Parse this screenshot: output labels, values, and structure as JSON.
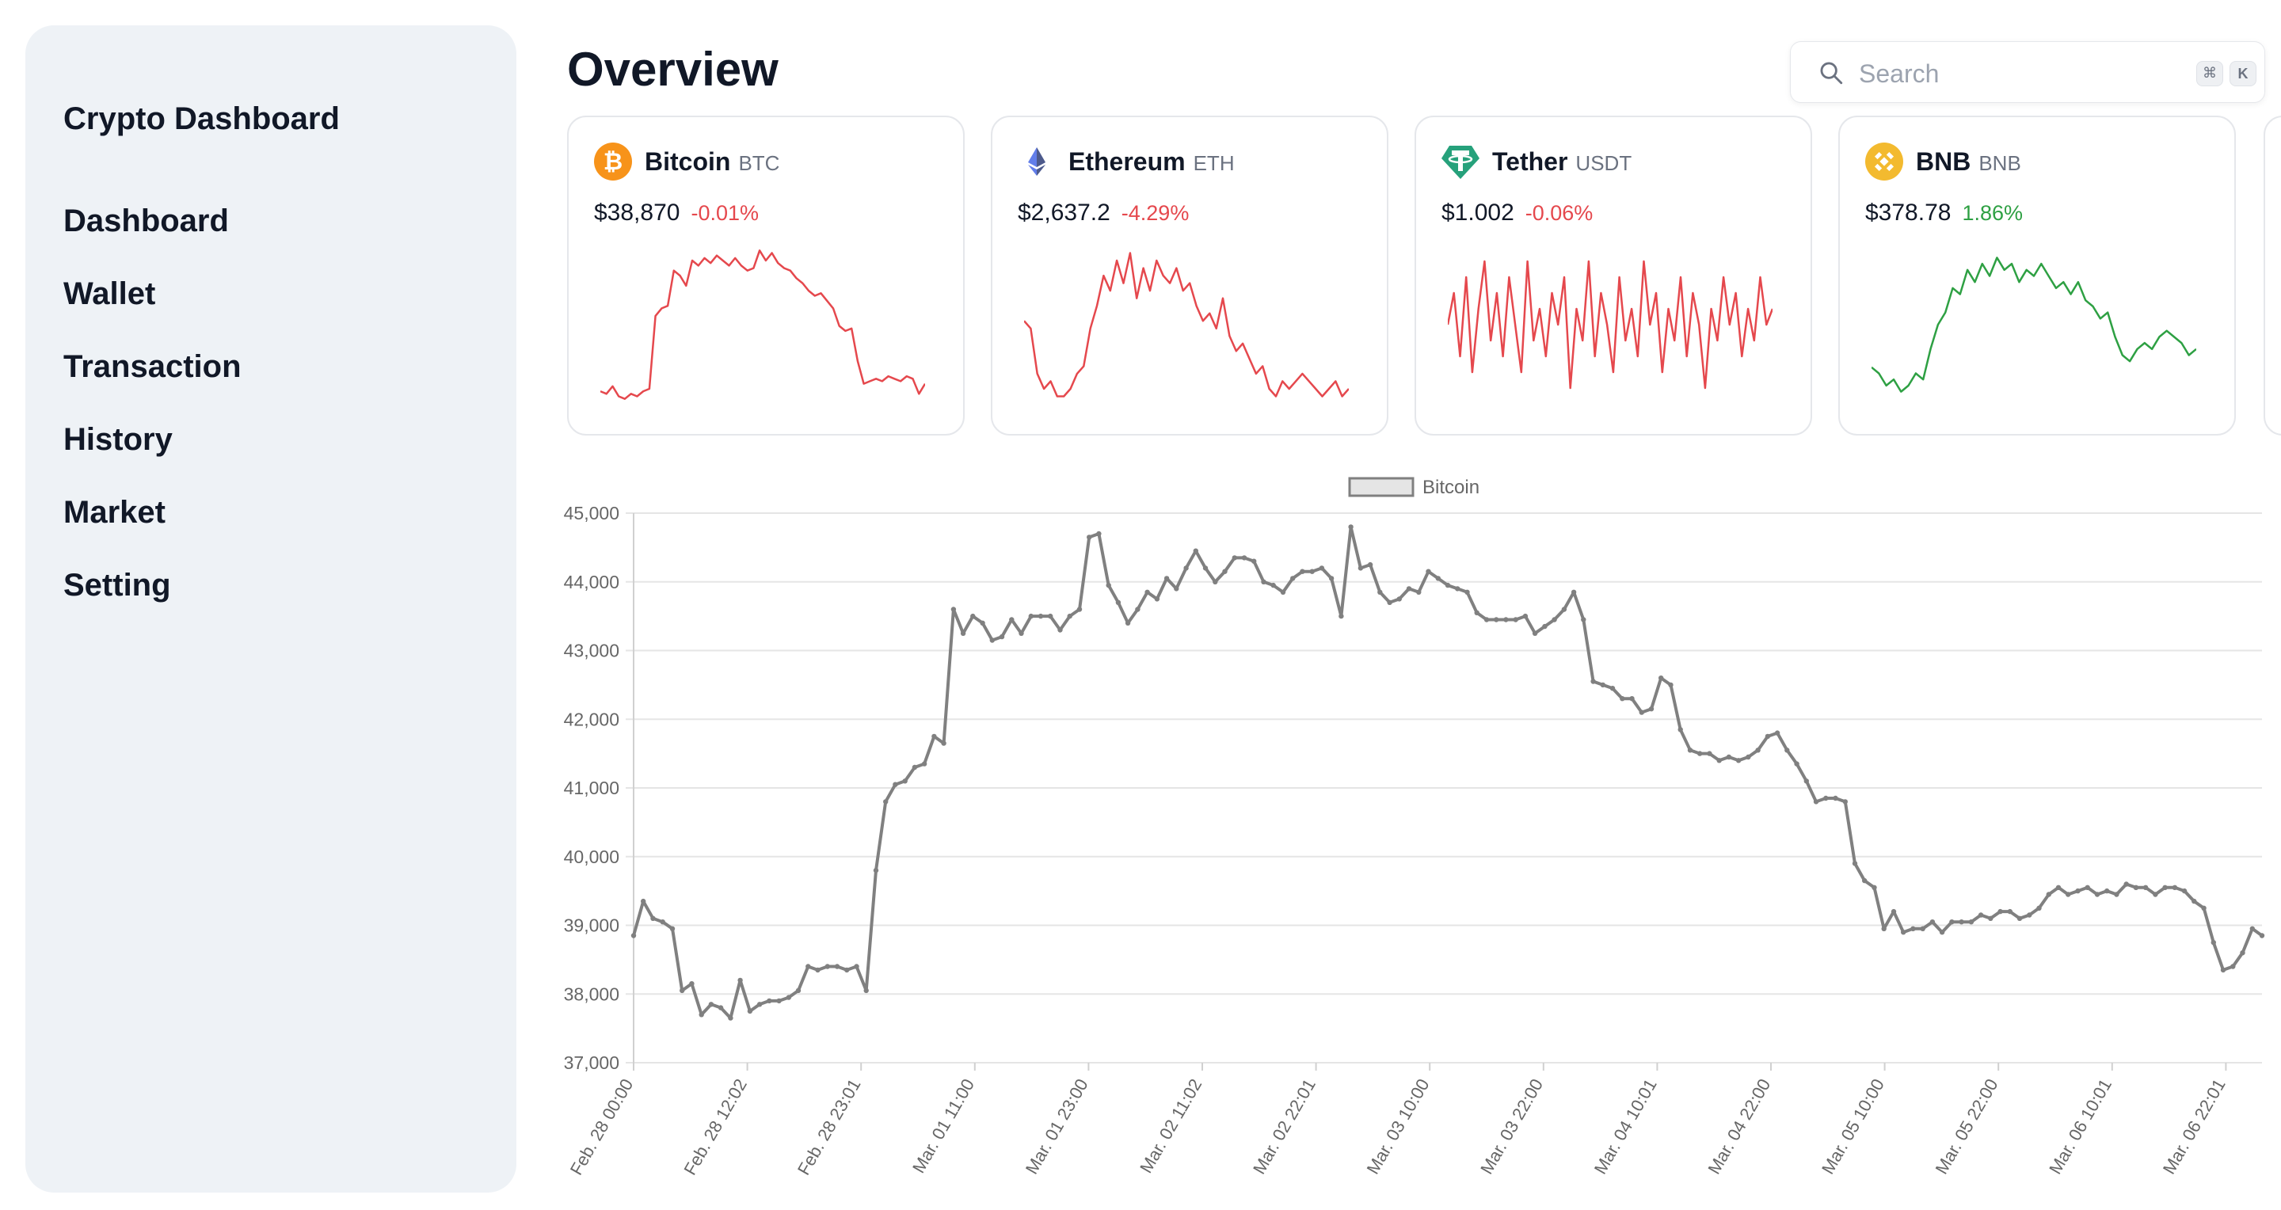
{
  "sidebar": {
    "brand": "Crypto Dashboard",
    "items": [
      "Dashboard",
      "Wallet",
      "Transaction",
      "History",
      "Market",
      "Setting"
    ]
  },
  "header": {
    "title": "Overview",
    "search": {
      "placeholder": "Search",
      "shortcut": [
        "⌘",
        "K"
      ],
      "icon": "search-icon"
    }
  },
  "colors": {
    "negative": "#e5484d",
    "positive": "#2ea043",
    "sidebar_bg": "#eef2f6",
    "main_line": "#808080"
  },
  "coins": [
    {
      "name": "Bitcoin",
      "symbol": "BTC",
      "price": "$38,870",
      "change": "-0.01%",
      "trend": "down",
      "icon": "bitcoin-icon",
      "icon_color": "#f7931a",
      "spark": [
        39,
        38.9,
        39.2,
        38.8,
        38.7,
        38.9,
        38.8,
        39.0,
        39.1,
        42.0,
        42.3,
        42.4,
        43.8,
        43.6,
        43.2,
        44.2,
        44.0,
        44.3,
        44.1,
        44.4,
        44.2,
        44.0,
        44.3,
        44.0,
        43.8,
        43.9,
        44.6,
        44.2,
        44.5,
        44.1,
        43.9,
        43.8,
        43.5,
        43.3,
        43.0,
        42.8,
        42.9,
        42.6,
        42.3,
        41.6,
        41.4,
        41.5,
        40.2,
        39.3,
        39.4,
        39.5,
        39.4,
        39.6,
        39.5,
        39.4,
        39.6,
        39.5,
        38.9,
        39.3
      ]
    },
    {
      "name": "Ethereum",
      "symbol": "ETH",
      "price": "$2,637.2",
      "change": "-4.29%",
      "trend": "down",
      "icon": "ethereum-icon",
      "icon_color": "#627eea",
      "spark": [
        3.0,
        2.9,
        2.3,
        2.1,
        2.2,
        2.0,
        2.0,
        2.1,
        2.3,
        2.4,
        2.9,
        3.2,
        3.6,
        3.4,
        3.8,
        3.5,
        3.9,
        3.3,
        3.7,
        3.4,
        3.8,
        3.6,
        3.5,
        3.7,
        3.4,
        3.5,
        3.2,
        3.0,
        3.1,
        2.9,
        3.3,
        2.8,
        2.6,
        2.7,
        2.5,
        2.3,
        2.4,
        2.1,
        2.0,
        2.2,
        2.1,
        2.2,
        2.3,
        2.2,
        2.1,
        2.0,
        2.1,
        2.2,
        2.0,
        2.1
      ],
      "spark_min": 1.9,
      "spark_max": 4.0
    },
    {
      "name": "Tether",
      "symbol": "USDT",
      "price": "$1.002",
      "change": "-0.06%",
      "trend": "down",
      "icon": "tether-icon",
      "icon_color": "#26a17b",
      "spark": [
        0.5,
        0.7,
        0.3,
        0.8,
        0.2,
        0.6,
        0.9,
        0.4,
        0.7,
        0.3,
        0.8,
        0.5,
        0.2,
        0.9,
        0.4,
        0.6,
        0.3,
        0.7,
        0.5,
        0.8,
        0.1,
        0.6,
        0.4,
        0.9,
        0.3,
        0.7,
        0.5,
        0.2,
        0.8,
        0.4,
        0.6,
        0.3,
        0.9,
        0.5,
        0.7,
        0.2,
        0.6,
        0.4,
        0.8,
        0.3,
        0.7,
        0.5,
        0.1,
        0.6,
        0.4,
        0.8,
        0.5,
        0.7,
        0.3,
        0.6,
        0.4,
        0.8,
        0.5,
        0.6
      ],
      "spark_min": 0.0,
      "spark_max": 1.0
    },
    {
      "name": "BNB",
      "symbol": "BNB",
      "price": "$378.78",
      "change": "1.86%",
      "trend": "up",
      "icon": "bnb-icon",
      "icon_color": "#f3ba2f",
      "spark": [
        2.1,
        2.0,
        1.8,
        1.9,
        1.7,
        1.8,
        2.0,
        1.9,
        2.4,
        2.8,
        3.0,
        3.4,
        3.3,
        3.7,
        3.5,
        3.8,
        3.6,
        3.9,
        3.7,
        3.8,
        3.5,
        3.7,
        3.6,
        3.8,
        3.6,
        3.4,
        3.5,
        3.3,
        3.5,
        3.2,
        3.1,
        2.9,
        3.0,
        2.6,
        2.3,
        2.2,
        2.4,
        2.5,
        2.4,
        2.6,
        2.7,
        2.6,
        2.5,
        2.3,
        2.4
      ],
      "spark_min": 1.5,
      "spark_max": 4.1
    }
  ],
  "chart_data": {
    "type": "line",
    "legend": "Bitcoin",
    "legend_position": "top-center",
    "grid": true,
    "ylim": [
      37000,
      45000
    ],
    "yticks": [
      "37,000",
      "38,000",
      "39,000",
      "40,000",
      "41,000",
      "42,000",
      "43,000",
      "44,000",
      "45,000"
    ],
    "xticks": [
      "Feb. 28 00:00",
      "Feb. 28 12:02",
      "Feb. 28 23:01",
      "Mar. 01 11:00",
      "Mar. 01 23:00",
      "Mar. 02 11:02",
      "Mar. 02 22:01",
      "Mar. 03 10:00",
      "Mar. 03 22:00",
      "Mar. 04 10:01",
      "Mar. 04 22:00",
      "Mar. 05 10:00",
      "Mar. 05 22:00",
      "Mar. 06 10:01",
      "Mar. 06 22:01"
    ],
    "series": [
      {
        "name": "Bitcoin",
        "color": "#808080",
        "values": [
          38850,
          39350,
          39100,
          39050,
          38950,
          38050,
          38150,
          37700,
          37850,
          37800,
          37650,
          38200,
          37750,
          37850,
          37900,
          37900,
          37950,
          38050,
          38400,
          38350,
          38400,
          38400,
          38350,
          38400,
          38050,
          39800,
          40800,
          41050,
          41100,
          41300,
          41350,
          41750,
          41650,
          43600,
          43250,
          43500,
          43400,
          43150,
          43200,
          43450,
          43250,
          43500,
          43500,
          43500,
          43300,
          43500,
          43600,
          44650,
          44700,
          43950,
          43700,
          43400,
          43600,
          43850,
          43750,
          44050,
          43900,
          44200,
          44450,
          44200,
          44000,
          44150,
          44350,
          44350,
          44300,
          44000,
          43950,
          43850,
          44050,
          44150,
          44150,
          44200,
          44050,
          43500,
          44800,
          44200,
          44250,
          43850,
          43700,
          43750,
          43900,
          43850,
          44150,
          44050,
          43950,
          43900,
          43850,
          43550,
          43450,
          43450,
          43450,
          43450,
          43500,
          43250,
          43350,
          43450,
          43600,
          43850,
          43450,
          42550,
          42500,
          42450,
          42300,
          42300,
          42100,
          42150,
          42600,
          42500,
          41850,
          41550,
          41500,
          41500,
          41400,
          41450,
          41400,
          41450,
          41550,
          41750,
          41800,
          41550,
          41350,
          41100,
          40800,
          40850,
          40850,
          40800,
          39900,
          39650,
          39550,
          38950,
          39200,
          38900,
          38950,
          38950,
          39050,
          38900,
          39050,
          39050,
          39050,
          39150,
          39100,
          39200,
          39200,
          39100,
          39150,
          39250,
          39450,
          39550,
          39450,
          39500,
          39550,
          39450,
          39500,
          39450,
          39600,
          39550,
          39550,
          39450,
          39550,
          39550,
          39500,
          39350,
          39250,
          38750,
          38350,
          38400,
          38600,
          38950,
          38850
        ]
      }
    ]
  }
}
